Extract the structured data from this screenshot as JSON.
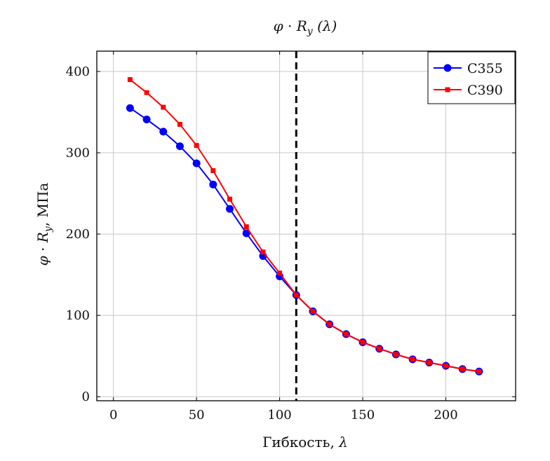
{
  "chart_data": {
    "type": "line",
    "title": "φ · R_y (λ)",
    "xlabel": "Гибкость, λ",
    "ylabel": "φ · R_y, МПа",
    "xlim": [
      -10,
      242
    ],
    "ylim": [
      -5,
      425
    ],
    "xticks": [
      0,
      50,
      100,
      150,
      200
    ],
    "yticks": [
      0,
      100,
      200,
      300,
      400
    ],
    "grid": true,
    "legend_position": "top-right",
    "reference_line": {
      "x": 110,
      "style": "dashed",
      "color": "#000000"
    },
    "series": [
      {
        "name": "С355",
        "color": "#0000ff",
        "marker": "circle",
        "x": [
          10,
          20,
          30,
          40,
          50,
          60,
          70,
          80,
          90,
          100,
          110,
          120,
          130,
          140,
          150,
          160,
          170,
          180,
          190,
          200,
          210,
          220
        ],
        "y": [
          355,
          341,
          326,
          308,
          287,
          261,
          231,
          201,
          173,
          148,
          125,
          105,
          89,
          77,
          67,
          59,
          52,
          46,
          42,
          38,
          34,
          31
        ]
      },
      {
        "name": "С390",
        "color": "#ff0000",
        "marker": "square",
        "x": [
          10,
          20,
          30,
          40,
          50,
          60,
          70,
          80,
          90,
          100,
          110,
          120,
          130,
          140,
          150,
          160,
          170,
          180,
          190,
          200,
          210,
          220
        ],
        "y": [
          390,
          374,
          356,
          335,
          309,
          278,
          243,
          209,
          178,
          152,
          125,
          105,
          89,
          77,
          67,
          59,
          52,
          46,
          42,
          38,
          34,
          31
        ]
      }
    ]
  }
}
